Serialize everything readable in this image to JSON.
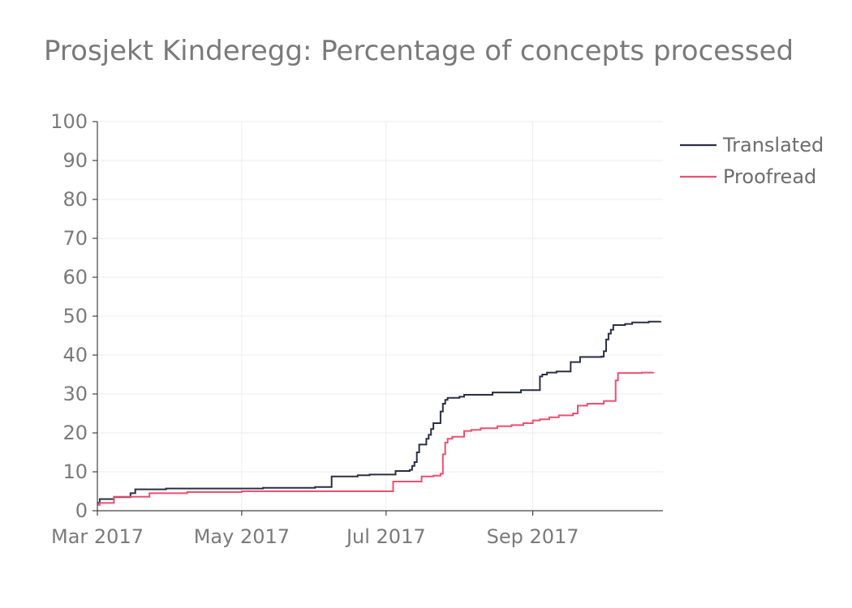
{
  "chart_data": {
    "type": "line",
    "title": "Prosjekt Kinderegg: Percentage of concepts processed",
    "xlabel": "",
    "ylabel": "",
    "ylim": [
      0,
      100
    ],
    "xlim": [
      "2017-03-01",
      "2017-10-26"
    ],
    "line_shape": "step",
    "grid": true,
    "legend_position": "top-right",
    "y_ticks": [
      "0",
      "10",
      "20",
      "30",
      "40",
      "50",
      "60",
      "70",
      "80",
      "90",
      "100"
    ],
    "x_ticks": [
      {
        "date": "2017-03-01",
        "label": "Mar 2017"
      },
      {
        "date": "2017-05-01",
        "label": "May 2017"
      },
      {
        "date": "2017-07-01",
        "label": "Jul 2017"
      },
      {
        "date": "2017-09-01",
        "label": "Sep 2017"
      }
    ],
    "series": [
      {
        "name": "Translated",
        "color": "#2a2f45",
        "points": [
          [
            "2017-03-01",
            2.0
          ],
          [
            "2017-03-02",
            3.0
          ],
          [
            "2017-03-08",
            3.5
          ],
          [
            "2017-03-15",
            4.5
          ],
          [
            "2017-03-17",
            5.5
          ],
          [
            "2017-03-30",
            5.7
          ],
          [
            "2017-05-10",
            5.9
          ],
          [
            "2017-06-08",
            6.2
          ],
          [
            "2017-06-01",
            6.1
          ],
          [
            "2017-06-08",
            8.8
          ],
          [
            "2017-06-19",
            9.1
          ],
          [
            "2017-06-24",
            9.3
          ],
          [
            "2017-07-05",
            10.2
          ],
          [
            "2017-07-11",
            10.5
          ],
          [
            "2017-07-12",
            11.5
          ],
          [
            "2017-07-13",
            12.5
          ],
          [
            "2017-07-14",
            15.0
          ],
          [
            "2017-07-15",
            17.0
          ],
          [
            "2017-07-18",
            18.5
          ],
          [
            "2017-07-19",
            19.5
          ],
          [
            "2017-07-20",
            21.0
          ],
          [
            "2017-07-21",
            22.5
          ],
          [
            "2017-07-24",
            25.5
          ],
          [
            "2017-07-25",
            27.5
          ],
          [
            "2017-07-26",
            28.5
          ],
          [
            "2017-07-27",
            29.0
          ],
          [
            "2017-08-01",
            29.3
          ],
          [
            "2017-08-03",
            29.8
          ],
          [
            "2017-08-15",
            30.4
          ],
          [
            "2017-08-27",
            31.0
          ],
          [
            "2017-09-04",
            34.5
          ],
          [
            "2017-09-05",
            35.0
          ],
          [
            "2017-09-07",
            35.5
          ],
          [
            "2017-09-11",
            35.8
          ],
          [
            "2017-09-17",
            38.2
          ],
          [
            "2017-09-21",
            39.5
          ],
          [
            "2017-09-30",
            39.6
          ],
          [
            "2017-10-01",
            41.0
          ],
          [
            "2017-10-02",
            44.0
          ],
          [
            "2017-10-03",
            45.5
          ],
          [
            "2017-10-04",
            46.5
          ],
          [
            "2017-10-05",
            47.7
          ],
          [
            "2017-10-10",
            48.0
          ],
          [
            "2017-10-13",
            48.4
          ],
          [
            "2017-10-20",
            48.6
          ],
          [
            "2017-10-25",
            48.7
          ]
        ]
      },
      {
        "name": "Proofread",
        "color": "#ec4f72",
        "points": [
          [
            "2017-03-01",
            1.5
          ],
          [
            "2017-03-02",
            2.0
          ],
          [
            "2017-03-08",
            3.6
          ],
          [
            "2017-03-23",
            4.5
          ],
          [
            "2017-04-08",
            4.8
          ],
          [
            "2017-05-01",
            5.0
          ],
          [
            "2017-07-04",
            7.5
          ],
          [
            "2017-07-16",
            8.8
          ],
          [
            "2017-07-21",
            9.0
          ],
          [
            "2017-07-24",
            9.5
          ],
          [
            "2017-07-25",
            14.5
          ],
          [
            "2017-07-26",
            17.5
          ],
          [
            "2017-07-27",
            18.5
          ],
          [
            "2017-07-29",
            19.0
          ],
          [
            "2017-08-03",
            20.5
          ],
          [
            "2017-08-06",
            20.8
          ],
          [
            "2017-08-10",
            21.2
          ],
          [
            "2017-08-17",
            21.7
          ],
          [
            "2017-08-23",
            22.0
          ],
          [
            "2017-08-28",
            22.5
          ],
          [
            "2017-09-01",
            23.2
          ],
          [
            "2017-09-04",
            23.5
          ],
          [
            "2017-09-08",
            24.0
          ],
          [
            "2017-09-12",
            24.5
          ],
          [
            "2017-09-18",
            25.0
          ],
          [
            "2017-09-20",
            27.0
          ],
          [
            "2017-09-24",
            27.5
          ],
          [
            "2017-10-01",
            28.2
          ],
          [
            "2017-10-06",
            33.5
          ],
          [
            "2017-10-07",
            35.4
          ],
          [
            "2017-10-17",
            35.5
          ],
          [
            "2017-10-22",
            35.6
          ]
        ]
      }
    ]
  }
}
